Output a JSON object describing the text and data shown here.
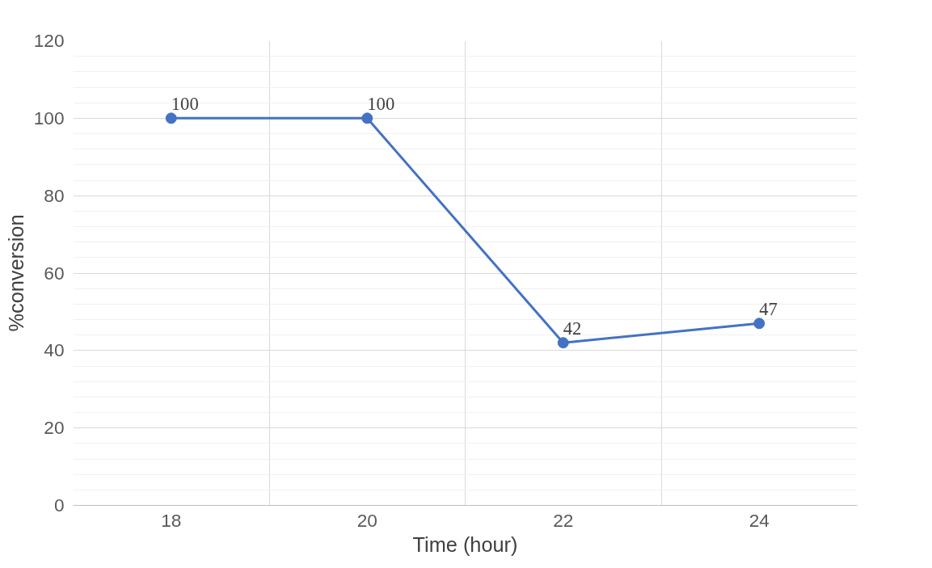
{
  "chart_data": {
    "type": "line",
    "xlabel": "Time (hour)",
    "ylabel": "%conversion",
    "categories": [
      "18",
      "20",
      "22",
      "24"
    ],
    "series": [
      {
        "color": "#4472c4",
        "values": [
          100,
          100,
          42,
          47
        ]
      }
    ],
    "ylim": [
      0,
      120
    ],
    "yticks": [
      0,
      20,
      40,
      60,
      80,
      100,
      120
    ],
    "grid": true,
    "marker": "circle",
    "line_style": "solid",
    "data_labels": true
  }
}
